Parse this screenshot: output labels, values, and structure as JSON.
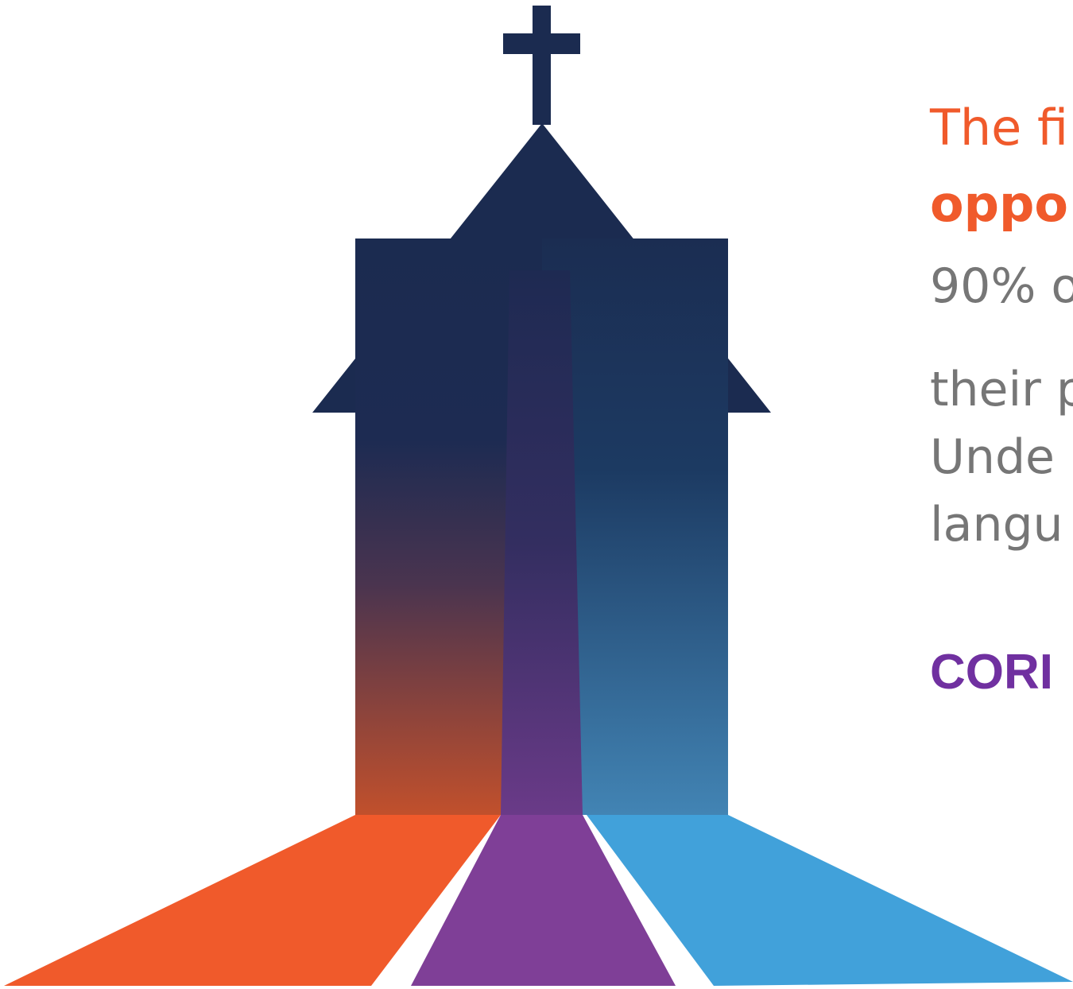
{
  "text": {
    "heading": [
      "The fi",
      "oppo"
    ],
    "body": [
      "90% o",
      "their p",
      "Unde",
      "langu"
    ],
    "callout": "CORI"
  }
}
